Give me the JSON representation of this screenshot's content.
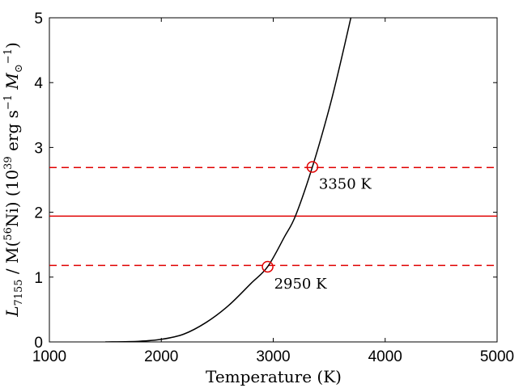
{
  "chart_data": {
    "type": "line",
    "xlabel": "Temperature (K)",
    "ylabel": {
      "main": "L",
      "sub": "7155",
      "mid": " / M(",
      "sup_ni": "56",
      "ni": "Ni) (10",
      "sup_exp": "39",
      "units": " erg s",
      "sup_neg": "−1",
      "msun": " M",
      "msun_sub": "⊙",
      "msun_sup": "−1",
      "close": ")"
    },
    "xlim": [
      1000,
      5000
    ],
    "ylim": [
      0,
      5
    ],
    "xticks": [
      1000,
      2000,
      3000,
      4000,
      5000
    ],
    "yticks": [
      0,
      1,
      2,
      3,
      4,
      5
    ],
    "grid": false,
    "curve": {
      "color": "#000000",
      "x": [
        1500,
        1800,
        2000,
        2200,
        2400,
        2600,
        2800,
        2950,
        3100,
        3200,
        3350,
        3500,
        3600,
        3700
      ],
      "y": [
        0.0,
        0.01,
        0.04,
        0.12,
        0.3,
        0.56,
        0.9,
        1.16,
        1.62,
        1.95,
        2.7,
        3.6,
        4.3,
        5.05
      ]
    },
    "hlines": [
      {
        "y": 1.94,
        "style": "solid",
        "color": "#e00000"
      },
      {
        "y": 2.69,
        "style": "dashed",
        "color": "#e00000"
      },
      {
        "y": 1.18,
        "style": "dashed",
        "color": "#e00000"
      }
    ],
    "markers": [
      {
        "x": 3350,
        "y": 2.7,
        "color": "#e00000"
      },
      {
        "x": 2950,
        "y": 1.16,
        "color": "#e00000"
      }
    ],
    "annotations": [
      {
        "text": "3350 K",
        "x": 3350,
        "y": 2.7
      },
      {
        "text": "2950 K",
        "x": 2950,
        "y": 1.16
      }
    ]
  }
}
